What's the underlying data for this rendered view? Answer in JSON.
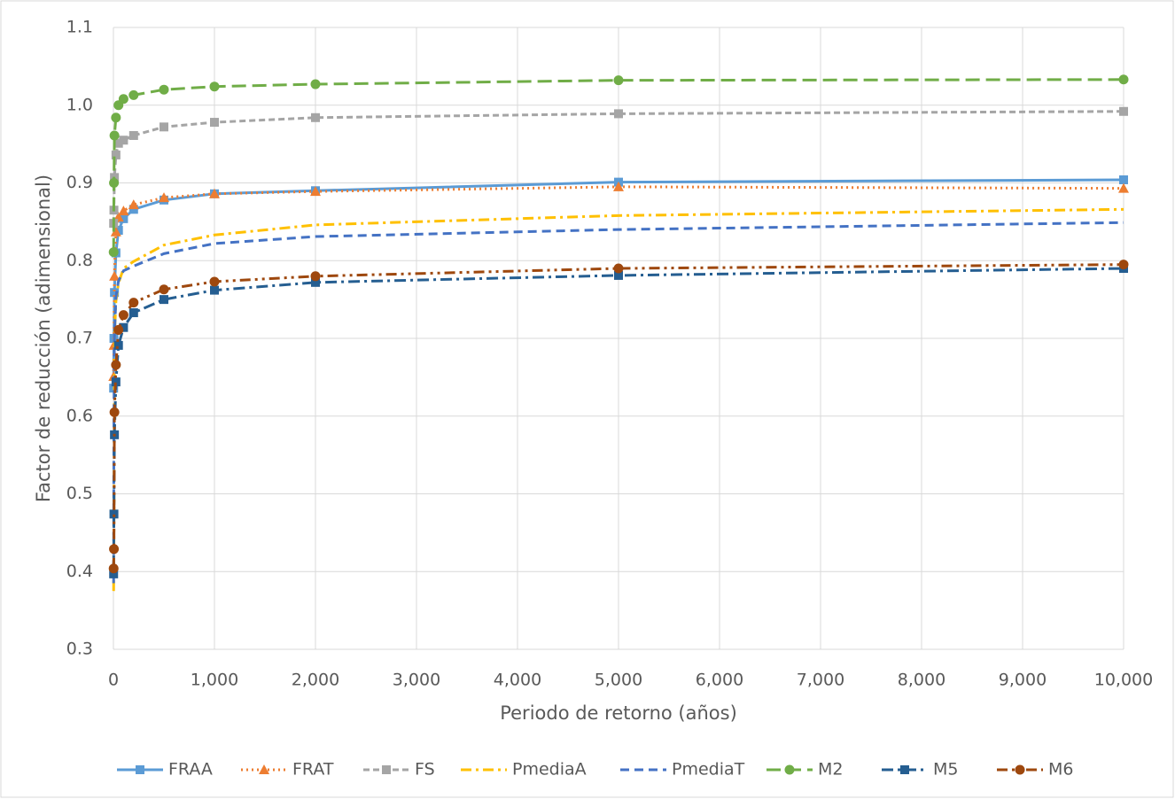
{
  "chart_data": {
    "type": "line",
    "x_label": "Periodo de retorno (años)",
    "y_label": "Factor de reducción (adimensional)",
    "x": [
      2,
      5,
      10,
      25,
      50,
      100,
      200,
      500,
      1000,
      2000,
      5000,
      10000
    ],
    "series": [
      {
        "name": "FRAA",
        "color": "#5b9bd5",
        "values": [
          0.636,
          0.7,
          0.759,
          0.81,
          0.839,
          0.854,
          0.866,
          0.878,
          0.886,
          0.89,
          0.901,
          0.904
        ]
      },
      {
        "name": "FRAT",
        "color": "#ed7d31",
        "values": [
          0.651,
          0.691,
          0.78,
          0.837,
          0.856,
          0.864,
          0.872,
          0.881,
          0.886,
          0.889,
          0.895,
          0.893
        ]
      },
      {
        "name": "FS",
        "color": "#a5a5a5",
        "values": [
          0.848,
          0.865,
          0.907,
          0.936,
          0.951,
          0.955,
          0.961,
          0.972,
          0.978,
          0.984,
          0.989,
          0.992
        ]
      },
      {
        "name": "PmediaA",
        "color": "#ffc000",
        "values": [
          0.375,
          0.44,
          0.702,
          0.748,
          0.771,
          0.79,
          0.799,
          0.82,
          0.833,
          0.846,
          0.858,
          0.866
        ]
      },
      {
        "name": "PmediaT",
        "color": "#4472c4",
        "values": [
          0.385,
          0.6,
          0.702,
          0.753,
          0.774,
          0.787,
          0.793,
          0.809,
          0.822,
          0.831,
          0.84,
          0.849
        ]
      },
      {
        "name": "M2",
        "color": "#70ad47",
        "values": [
          0.811,
          0.9,
          0.961,
          0.984,
          1.0,
          1.008,
          1.013,
          1.02,
          1.024,
          1.027,
          1.032,
          1.033
        ]
      },
      {
        "name": "M5",
        "color": "#255e91",
        "values": [
          0.397,
          0.474,
          0.576,
          0.644,
          0.691,
          0.714,
          0.733,
          0.75,
          0.762,
          0.772,
          0.781,
          0.79
        ]
      },
      {
        "name": "M6",
        "color": "#9e480e",
        "values": [
          0.404,
          0.429,
          0.605,
          0.666,
          0.711,
          0.73,
          0.746,
          0.763,
          0.773,
          0.78,
          0.79,
          0.795
        ]
      }
    ],
    "xlim": [
      0,
      10000
    ],
    "xticks": [
      0,
      {
        "value": 1000,
        "label": "1,000"
      },
      {
        "value": 2000,
        "label": "2,000"
      },
      {
        "value": 3000,
        "label": "3,000"
      },
      {
        "value": 4000,
        "label": "4,000"
      },
      {
        "value": 5000,
        "label": "5,000"
      },
      {
        "value": 6000,
        "label": "6,000"
      },
      {
        "value": 7000,
        "label": "7,000"
      },
      {
        "value": 8000,
        "label": "8,000"
      },
      {
        "value": 9000,
        "label": "9,000"
      },
      {
        "value": 10000,
        "label": "10,000"
      }
    ],
    "ylim": [
      0.3,
      1.1
    ],
    "yticks": [
      0.3,
      0.4,
      0.5,
      0.6,
      0.7,
      0.8,
      0.9,
      {
        "value": 1,
        "label": "1.0"
      },
      1.1
    ],
    "grid": true,
    "legend": "bottom"
  }
}
